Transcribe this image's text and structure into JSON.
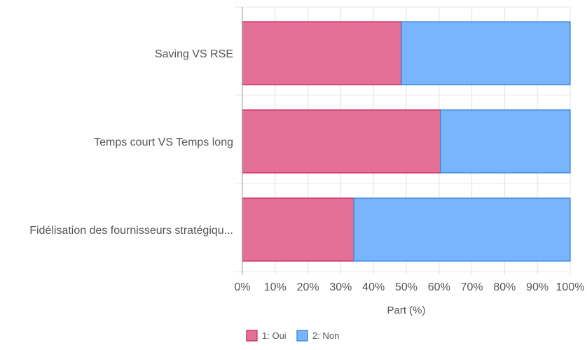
{
  "chart_data": {
    "type": "bar",
    "orientation": "horizontal",
    "stacked": "percent",
    "categories": [
      "Saving VS RSE",
      "Temps court VS Temps long",
      "Fidélisation des fournisseurs stratégiqu..."
    ],
    "series": [
      {
        "name": "1: Oui",
        "values": [
          48.5,
          60.4,
          34.0
        ],
        "color": "#e46f97",
        "stroke": "#c81e58"
      },
      {
        "name": "2: Non",
        "values": [
          51.5,
          39.6,
          66.0
        ],
        "color": "#78b5fd",
        "stroke": "#2f7fd8"
      }
    ],
    "xlabel": "Part (%)",
    "xlim": [
      0,
      100
    ],
    "xticks": [
      "0%",
      "10%",
      "20%",
      "30%",
      "40%",
      "50%",
      "60%",
      "70%",
      "80%",
      "90%",
      "100%"
    ],
    "grid": true,
    "legend_position": "bottom-left"
  }
}
